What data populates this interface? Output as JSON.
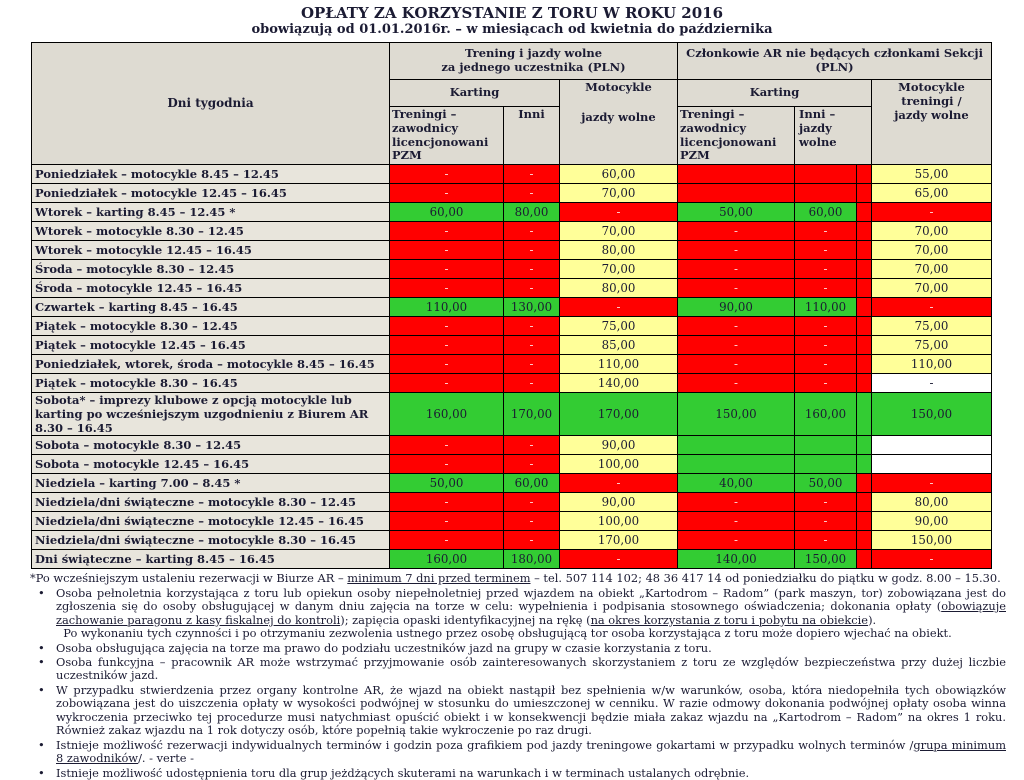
{
  "title": "OPŁATY ZA KORZYSTANIE Z TORU W ROKU 2016",
  "subtitle": "obowiązują od 01.01.2016r. – w miesiącach od kwietnia do października",
  "colors": {
    "red": "#ff0000",
    "yellow": "#ffff99",
    "green": "#33cc33",
    "header_bg": "#dedbd2",
    "label_bg": "#e8e5dc"
  },
  "header": {
    "days": "Dni tygodnia",
    "group1_line1": "Trening i jazdy wolne",
    "group1_line2": "za jednego uczestnika (PLN)",
    "group2_line1": "Członkowie AR nie będących członkami Sekcji",
    "group2_line2": "(PLN)",
    "karting_left": "Karting",
    "karting_right": "Karting",
    "moto_left_line1": "Motocykle",
    "moto_left_line2": "jazdy wolne",
    "moto_right": "Motocykle treningi / jazdy wolne",
    "pzm_left": "Treningi – zawodnicy licencjonowani PZM",
    "inni_left": "Inni",
    "pzm_right": "Treningi – zawodnicy licencjonowani PZM",
    "inni_right": "Inni – jazdy wolne"
  },
  "rows": [
    {
      "label": "Poniedziałek – motocykle 8.45 – 12.45",
      "tall": false,
      "cells": [
        {
          "v": "-",
          "c": "r"
        },
        {
          "v": "-",
          "c": "r"
        },
        {
          "v": "60,00",
          "c": "y"
        },
        {
          "v": "",
          "c": "r"
        },
        {
          "v": "",
          "c": "r"
        },
        {
          "v": "",
          "c": "r"
        },
        {
          "v": "55,00",
          "c": "y"
        }
      ]
    },
    {
      "label": "Poniedziałek – motocykle 12.45 – 16.45",
      "tall": false,
      "cells": [
        {
          "v": "-",
          "c": "r"
        },
        {
          "v": "-",
          "c": "r"
        },
        {
          "v": "70,00",
          "c": "y"
        },
        {
          "v": "",
          "c": "r"
        },
        {
          "v": "",
          "c": "r"
        },
        {
          "v": "",
          "c": "r"
        },
        {
          "v": "65,00",
          "c": "y"
        }
      ]
    },
    {
      "label": "Wtorek – karting 8.45 – 12.45 *",
      "tall": false,
      "cells": [
        {
          "v": "60,00",
          "c": "g"
        },
        {
          "v": "80,00",
          "c": "g"
        },
        {
          "v": "-",
          "c": "r"
        },
        {
          "v": "50,00",
          "c": "g"
        },
        {
          "v": "60,00",
          "c": "g"
        },
        {
          "v": "",
          "c": "r"
        },
        {
          "v": "-",
          "c": "r"
        }
      ]
    },
    {
      "label": "Wtorek – motocykle 8.30 – 12.45",
      "tall": false,
      "cells": [
        {
          "v": "-",
          "c": "r"
        },
        {
          "v": "-",
          "c": "r"
        },
        {
          "v": "70,00",
          "c": "y"
        },
        {
          "v": "-",
          "c": "r"
        },
        {
          "v": "-",
          "c": "r"
        },
        {
          "v": "",
          "c": "r"
        },
        {
          "v": "70,00",
          "c": "y"
        }
      ]
    },
    {
      "label": "Wtorek – motocykle 12.45 – 16.45",
      "tall": false,
      "cells": [
        {
          "v": "-",
          "c": "r"
        },
        {
          "v": "-",
          "c": "r"
        },
        {
          "v": "80,00",
          "c": "y"
        },
        {
          "v": "-",
          "c": "r"
        },
        {
          "v": "-",
          "c": "r"
        },
        {
          "v": "",
          "c": "r"
        },
        {
          "v": "70,00",
          "c": "y"
        }
      ]
    },
    {
      "label": "Środa – motocykle 8.30 – 12.45",
      "tall": false,
      "cells": [
        {
          "v": "-",
          "c": "r"
        },
        {
          "v": "-",
          "c": "r"
        },
        {
          "v": "70,00",
          "c": "y"
        },
        {
          "v": "-",
          "c": "r"
        },
        {
          "v": "-",
          "c": "r"
        },
        {
          "v": "",
          "c": "r"
        },
        {
          "v": "70,00",
          "c": "y"
        }
      ]
    },
    {
      "label": "Środa – motocykle 12.45 – 16.45",
      "tall": false,
      "cells": [
        {
          "v": "-",
          "c": "r"
        },
        {
          "v": "-",
          "c": "r"
        },
        {
          "v": "80,00",
          "c": "y"
        },
        {
          "v": "-",
          "c": "r"
        },
        {
          "v": "-",
          "c": "r"
        },
        {
          "v": "",
          "c": "r"
        },
        {
          "v": "70,00",
          "c": "y"
        }
      ]
    },
    {
      "label": "Czwartek – karting 8.45 – 16.45",
      "tall": false,
      "cells": [
        {
          "v": "110,00",
          "c": "g"
        },
        {
          "v": "130,00",
          "c": "g"
        },
        {
          "v": "-",
          "c": "r"
        },
        {
          "v": "90,00",
          "c": "g"
        },
        {
          "v": "110,00",
          "c": "g"
        },
        {
          "v": "",
          "c": "r"
        },
        {
          "v": "-",
          "c": "r"
        }
      ]
    },
    {
      "label": "Piątek – motocykle 8.30 – 12.45",
      "tall": false,
      "cells": [
        {
          "v": "-",
          "c": "r"
        },
        {
          "v": "-",
          "c": "r"
        },
        {
          "v": "75,00",
          "c": "y"
        },
        {
          "v": "-",
          "c": "r"
        },
        {
          "v": "-",
          "c": "r"
        },
        {
          "v": "",
          "c": "r"
        },
        {
          "v": "75,00",
          "c": "y"
        }
      ]
    },
    {
      "label": "Piątek – motocykle 12.45 – 16.45",
      "tall": false,
      "cells": [
        {
          "v": "-",
          "c": "r"
        },
        {
          "v": "-",
          "c": "r"
        },
        {
          "v": "85,00",
          "c": "y"
        },
        {
          "v": "-",
          "c": "r"
        },
        {
          "v": "-",
          "c": "r"
        },
        {
          "v": "",
          "c": "r"
        },
        {
          "v": "75,00",
          "c": "y"
        }
      ]
    },
    {
      "label": "Poniedziałek, wtorek, środa – motocykle 8.45 – 16.45",
      "tall": false,
      "cells": [
        {
          "v": "-",
          "c": "r"
        },
        {
          "v": "-",
          "c": "r"
        },
        {
          "v": "110,00",
          "c": "y"
        },
        {
          "v": "-",
          "c": "r"
        },
        {
          "v": "-",
          "c": "r"
        },
        {
          "v": "",
          "c": "r"
        },
        {
          "v": "110,00",
          "c": "y"
        }
      ]
    },
    {
      "label": "Piątek – motocykle 8.30 – 16.45",
      "tall": false,
      "cells": [
        {
          "v": "-",
          "c": "r"
        },
        {
          "v": "-",
          "c": "r"
        },
        {
          "v": "140,00",
          "c": "y"
        },
        {
          "v": "-",
          "c": "r"
        },
        {
          "v": "-",
          "c": "r"
        },
        {
          "v": "",
          "c": "r"
        },
        {
          "v": "-",
          "c": "w"
        }
      ]
    },
    {
      "label": "Sobota* – imprezy klubowe z opcją motocykle lub karting po wcześniejszym uzgodnieniu z Biurem AR  8.30 – 16.45",
      "tall": true,
      "cells": [
        {
          "v": "160,00",
          "c": "g"
        },
        {
          "v": "170,00",
          "c": "g"
        },
        {
          "v": "170,00",
          "c": "g"
        },
        {
          "v": "150,00",
          "c": "g"
        },
        {
          "v": "160,00",
          "c": "g"
        },
        {
          "v": "",
          "c": "g"
        },
        {
          "v": "150,00",
          "c": "g"
        }
      ]
    },
    {
      "label": "Sobota – motocykle 8.30 – 12.45",
      "tall": false,
      "cells": [
        {
          "v": "-",
          "c": "r"
        },
        {
          "v": "-",
          "c": "r"
        },
        {
          "v": "90,00",
          "c": "y"
        },
        {
          "v": "",
          "c": "g"
        },
        {
          "v": "",
          "c": "g"
        },
        {
          "v": "",
          "c": "g"
        },
        {
          "v": "",
          "c": "w"
        }
      ]
    },
    {
      "label": "Sobota – motocykle 12.45 – 16.45",
      "tall": false,
      "cells": [
        {
          "v": "-",
          "c": "r"
        },
        {
          "v": "-",
          "c": "r"
        },
        {
          "v": "100,00",
          "c": "y"
        },
        {
          "v": "",
          "c": "g"
        },
        {
          "v": "",
          "c": "g"
        },
        {
          "v": "",
          "c": "g"
        },
        {
          "v": "",
          "c": "w"
        }
      ]
    },
    {
      "label": "Niedziela – karting 7.00 – 8.45 *",
      "tall": false,
      "cells": [
        {
          "v": "50,00",
          "c": "g"
        },
        {
          "v": "60,00",
          "c": "g"
        },
        {
          "v": "-",
          "c": "r"
        },
        {
          "v": "40,00",
          "c": "g"
        },
        {
          "v": "50,00",
          "c": "g"
        },
        {
          "v": "",
          "c": "r"
        },
        {
          "v": "-",
          "c": "r"
        }
      ]
    },
    {
      "label": "Niedziela/dni świąteczne – motocykle 8.30 – 12.45",
      "tall": false,
      "cells": [
        {
          "v": "-",
          "c": "r"
        },
        {
          "v": "-",
          "c": "r"
        },
        {
          "v": "90,00",
          "c": "y"
        },
        {
          "v": "-",
          "c": "r"
        },
        {
          "v": "-",
          "c": "r"
        },
        {
          "v": "",
          "c": "r"
        },
        {
          "v": "80,00",
          "c": "y"
        }
      ]
    },
    {
      "label": "Niedziela/dni świąteczne – motocykle 12.45 – 16.45",
      "tall": false,
      "cells": [
        {
          "v": "-",
          "c": "r"
        },
        {
          "v": "-",
          "c": "r"
        },
        {
          "v": "100,00",
          "c": "y"
        },
        {
          "v": "-",
          "c": "r"
        },
        {
          "v": "-",
          "c": "r"
        },
        {
          "v": "",
          "c": "r"
        },
        {
          "v": "90,00",
          "c": "y"
        }
      ]
    },
    {
      "label": "Niedziela/dni świąteczne – motocykle 8.30 – 16.45",
      "tall": false,
      "cells": [
        {
          "v": "-",
          "c": "r"
        },
        {
          "v": "-",
          "c": "r"
        },
        {
          "v": "170,00",
          "c": "y"
        },
        {
          "v": "-",
          "c": "r"
        },
        {
          "v": "-",
          "c": "r"
        },
        {
          "v": "",
          "c": "r"
        },
        {
          "v": "150,00",
          "c": "y"
        }
      ]
    },
    {
      "label": "Dni świąteczne – karting 8.45 – 16.45",
      "tall": false,
      "cells": [
        {
          "v": "160,00",
          "c": "g"
        },
        {
          "v": "180,00",
          "c": "g"
        },
        {
          "v": "-",
          "c": "r"
        },
        {
          "v": "140,00",
          "c": "g"
        },
        {
          "v": "150,00",
          "c": "g"
        },
        {
          "v": "",
          "c": "r"
        },
        {
          "v": "-",
          "c": "r"
        }
      ]
    }
  ],
  "notes": [
    {
      "bullet": false,
      "segments": [
        {
          "t": "*Po wcześniejszym ustaleniu rezerwacji w Biurze AR – "
        },
        {
          "t": "minimum 7 dni przed terminem",
          "u": true
        },
        {
          "t": " – tel. 507 114 102; 48 36 417 14 od poniedziałku do piątku w godz. 8.00 – 15.30."
        }
      ]
    },
    {
      "bullet": true,
      "segments": [
        {
          "t": "Osoba pełnoletnia korzystająca z toru lub opiekun osoby niepełnoletniej przed wjazdem na obiekt „Kartodrom – Radom” (park maszyn, tor) zobowiązana jest do zgłoszenia się do osoby obsługującej w danym dniu zajęcia na torze w celu: wypełnienia i podpisania stosownego oświadczenia; dokonania opłaty ("
        },
        {
          "t": "obowiązuje zachowanie paragonu z kasy fiskalnej do kontroli",
          "u": true
        },
        {
          "t": "); zapięcia opaski identyfikacyjnej na rękę ("
        },
        {
          "t": "na okres korzystania z toru i pobytu na obiekcie",
          "u": true
        },
        {
          "t": ")."
        },
        {
          "br": true
        },
        {
          "t": "Po wykonaniu tych czynności i po otrzymaniu zezwolenia ustnego przez osobę obsługującą tor osoba korzystająca z toru może dopiero wjechać na obiekt."
        }
      ]
    },
    {
      "bullet": true,
      "segments": [
        {
          "t": "Osoba obsługująca zajęcia na torze ma prawo do podziału uczestników jazd na grupy w czasie korzystania z toru."
        }
      ]
    },
    {
      "bullet": true,
      "segments": [
        {
          "t": "Osoba funkcyjna – pracownik AR może wstrzymać przyjmowanie osób zainteresowanych skorzystaniem z toru ze względów bezpieczeństwa przy dużej liczbie uczestników jazd."
        }
      ]
    },
    {
      "bullet": true,
      "segments": [
        {
          "t": "W przypadku stwierdzenia przez organy kontrolne AR, że wjazd na obiekt nastąpił bez spełnienia w/w warunków, osoba, która niedopełniła tych obowiązków zobowiązana jest do uiszczenia opłaty w wysokości podwójnej w stosunku do umieszczonej w cenniku. W razie odmowy dokonania podwójnej opłaty osoba winna wykroczenia przeciwko tej procedurze musi natychmiast opuścić obiekt i w konsekwencji będzie miała zakaz wjazdu na „Kartodrom – Radom” na okres 1 roku. Również zakaz wjazdu na 1 rok dotyczy osób, które popełnią takie wykroczenie po raz drugi."
        }
      ]
    },
    {
      "bullet": true,
      "segments": [
        {
          "t": "Istnieje możliwość rezerwacji indywidualnych terminów i godzin poza grafikiem pod jazdy treningowe gokartami w przypadku wolnych terminów /"
        },
        {
          "t": "grupa minimum 8 zawodników",
          "u": true
        },
        {
          "t": "/.  - verte -"
        }
      ]
    },
    {
      "bullet": true,
      "segments": [
        {
          "t": "Istnieje możliwość udostępnienia toru dla grup jeżdżących skuterami na warunkach i w terminach ustalanych odrębnie."
        }
      ]
    }
  ]
}
